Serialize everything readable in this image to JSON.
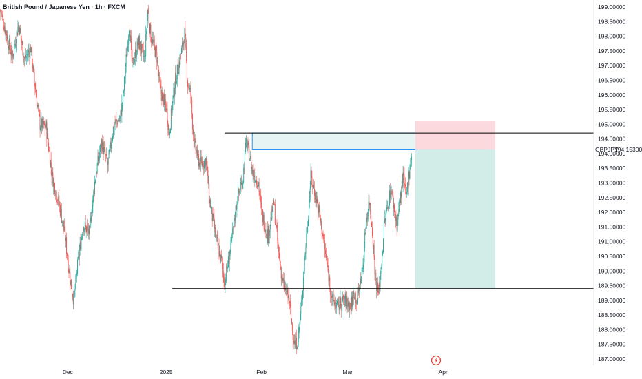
{
  "chart_data": {
    "type": "candlestick",
    "title": "British Pound / Japanese Yen · 1h · FXCM",
    "symbol": "GBPJPY",
    "current_price": "194.15300",
    "ylim": [
      186.9,
      199.2
    ],
    "y_ticks": [
      "199.00000",
      "198.50000",
      "198.00000",
      "197.50000",
      "197.00000",
      "196.50000",
      "196.00000",
      "195.50000",
      "195.00000",
      "194.50000",
      "194.00000",
      "193.50000",
      "193.00000",
      "192.50000",
      "192.00000",
      "191.50000",
      "191.00000",
      "190.50000",
      "190.00000",
      "189.50000",
      "189.00000",
      "188.50000",
      "188.00000",
      "187.50000",
      "187.00000"
    ],
    "x_ticks": [
      {
        "label": "Dec",
        "day": 14
      },
      {
        "label": "2025",
        "day": 46
      },
      {
        "label": "Feb",
        "day": 77
      },
      {
        "label": "Mar",
        "day": 105
      },
      {
        "label": "Apr",
        "day": 136
      }
    ],
    "x_range_days": [
      -8,
      185
    ],
    "price_path": [
      [
        -8,
        198.9
      ],
      [
        -6,
        198.1
      ],
      [
        -4,
        197.3
      ],
      [
        -2,
        198.4
      ],
      [
        0,
        197.2
      ],
      [
        2,
        197.6
      ],
      [
        3,
        196.6
      ],
      [
        5,
        195.0
      ],
      [
        7,
        194.9
      ],
      [
        9,
        193.2
      ],
      [
        11,
        192.4
      ],
      [
        13,
        191.3
      ],
      [
        14,
        190.4
      ],
      [
        15,
        189.6
      ],
      [
        16,
        189.0
      ],
      [
        17,
        190.0
      ],
      [
        19,
        191.6
      ],
      [
        21,
        191.3
      ],
      [
        23,
        193.2
      ],
      [
        25,
        194.4
      ],
      [
        27,
        193.6
      ],
      [
        29,
        195.0
      ],
      [
        31,
        195.2
      ],
      [
        32,
        195.9
      ],
      [
        33,
        197.2
      ],
      [
        34,
        198.4
      ],
      [
        35,
        197.0
      ],
      [
        37,
        197.8
      ],
      [
        39,
        197.2
      ],
      [
        40,
        198.9
      ],
      [
        41,
        198.0
      ],
      [
        43,
        197.3
      ],
      [
        44,
        196.2
      ],
      [
        46,
        195.6
      ],
      [
        47,
        194.7
      ],
      [
        48,
        195.7
      ],
      [
        49,
        196.5
      ],
      [
        51,
        197.5
      ],
      [
        52,
        198.1
      ],
      [
        53,
        196.4
      ],
      [
        54,
        196.0
      ],
      [
        55,
        194.4
      ],
      [
        57,
        193.6
      ],
      [
        59,
        193.8
      ],
      [
        60,
        192.5
      ],
      [
        62,
        191.2
      ],
      [
        64,
        190.3
      ],
      [
        65,
        189.6
      ],
      [
        67,
        190.8
      ],
      [
        69,
        192.4
      ],
      [
        71,
        193.2
      ],
      [
        72,
        194.4
      ],
      [
        73,
        194.0
      ],
      [
        74,
        193.4
      ],
      [
        76,
        193.0
      ],
      [
        77,
        192.0
      ],
      [
        79,
        191.2
      ],
      [
        81,
        192.3
      ],
      [
        82,
        191.2
      ],
      [
        83,
        190.2
      ],
      [
        84,
        189.6
      ],
      [
        86,
        189.0
      ],
      [
        87,
        188.0
      ],
      [
        88,
        187.4
      ],
      [
        89,
        187.8
      ],
      [
        90,
        188.9
      ],
      [
        91,
        190.4
      ],
      [
        92,
        191.7
      ],
      [
        93,
        193.2
      ],
      [
        95,
        192.4
      ],
      [
        97,
        191.2
      ],
      [
        98,
        190.4
      ],
      [
        100,
        189.0
      ],
      [
        102,
        188.8
      ],
      [
        104,
        189.0
      ],
      [
        106,
        188.8
      ],
      [
        107,
        189.3
      ],
      [
        108,
        189.0
      ],
      [
        110,
        190.2
      ],
      [
        111,
        191.7
      ],
      [
        112,
        192.4
      ],
      [
        113,
        191.4
      ],
      [
        114,
        189.8
      ],
      [
        115,
        189.2
      ],
      [
        116,
        190.3
      ],
      [
        117,
        191.7
      ],
      [
        118,
        192.2
      ],
      [
        119,
        192.8
      ],
      [
        120,
        192.2
      ],
      [
        121,
        191.6
      ],
      [
        122,
        192.4
      ],
      [
        123,
        193.2
      ],
      [
        124,
        192.5
      ],
      [
        125,
        193.4
      ],
      [
        126,
        194.15
      ]
    ],
    "lines": [
      {
        "name": "resistance",
        "value": 194.7,
        "from_day": 65,
        "to_day": 185
      },
      {
        "name": "support",
        "value": 189.4,
        "from_day": 48,
        "to_day": 185
      }
    ],
    "zones": [
      {
        "name": "supply-zone",
        "from_day": 74,
        "to_day": 150,
        "low": 194.15,
        "high": 194.7,
        "color": "#e6f5f3"
      },
      {
        "name": "stop-zone",
        "from_day": 127,
        "to_day": 153,
        "low": 194.15,
        "high": 195.1,
        "color": "#fbd9dd"
      },
      {
        "name": "target-zone",
        "from_day": 127,
        "to_day": 153,
        "low": 189.4,
        "high": 194.15,
        "color": "#d2ece7"
      }
    ],
    "colors": {
      "up": "#26a69a",
      "down": "#ef5350",
      "grid": "#000000",
      "zone_border": "#2196f3",
      "logo": "#e53935"
    },
    "logo_icon": "lightning-icon"
  }
}
